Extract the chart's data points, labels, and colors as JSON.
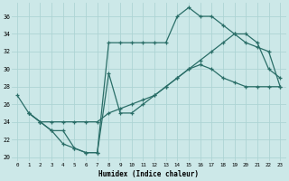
{
  "xlabel": "Humidex (Indice chaleur)",
  "xlim": [
    -0.5,
    23.5
  ],
  "ylim": [
    19.5,
    37.5
  ],
  "yticks": [
    20,
    22,
    24,
    26,
    28,
    30,
    32,
    34,
    36
  ],
  "xticks": [
    0,
    1,
    2,
    3,
    4,
    5,
    6,
    7,
    8,
    9,
    10,
    11,
    12,
    13,
    14,
    15,
    16,
    17,
    18,
    19,
    20,
    21,
    22,
    23
  ],
  "bg_color": "#cce8e8",
  "grid_color": "#add4d4",
  "line_color": "#2a6e68",
  "line1_x": [
    0,
    1,
    2,
    3,
    4,
    5,
    6,
    7,
    8,
    9,
    10,
    11,
    12,
    13,
    14,
    15,
    16,
    17,
    18,
    19,
    20,
    21,
    22,
    23
  ],
  "line1_y": [
    27,
    25,
    24,
    23,
    21.5,
    21,
    20.5,
    20.5,
    29.5,
    25,
    25,
    26,
    27,
    28,
    29,
    30,
    30.5,
    30,
    29,
    28.5,
    28,
    28,
    28,
    28
  ],
  "line2_x": [
    1,
    2,
    3,
    4,
    5,
    6,
    7,
    8,
    9,
    10,
    11,
    12,
    13,
    14,
    15,
    16,
    17,
    18,
    19,
    20,
    21,
    22,
    23
  ],
  "line2_y": [
    25,
    24,
    24,
    24,
    24,
    24,
    24,
    25,
    25.5,
    26,
    26.5,
    27,
    28,
    29,
    30,
    31,
    32,
    33,
    34,
    33,
    32.5,
    32,
    28
  ],
  "line3_x": [
    1,
    2,
    3,
    4,
    5,
    6,
    7,
    8,
    9,
    10,
    11,
    12,
    13,
    14,
    15,
    16,
    17,
    18,
    19,
    20,
    21,
    22,
    23
  ],
  "line3_y": [
    25,
    24,
    23,
    23,
    21,
    20.5,
    20.5,
    33,
    33,
    33,
    33,
    33,
    33,
    36,
    37,
    36,
    36,
    35,
    34,
    34,
    33,
    30,
    29
  ]
}
